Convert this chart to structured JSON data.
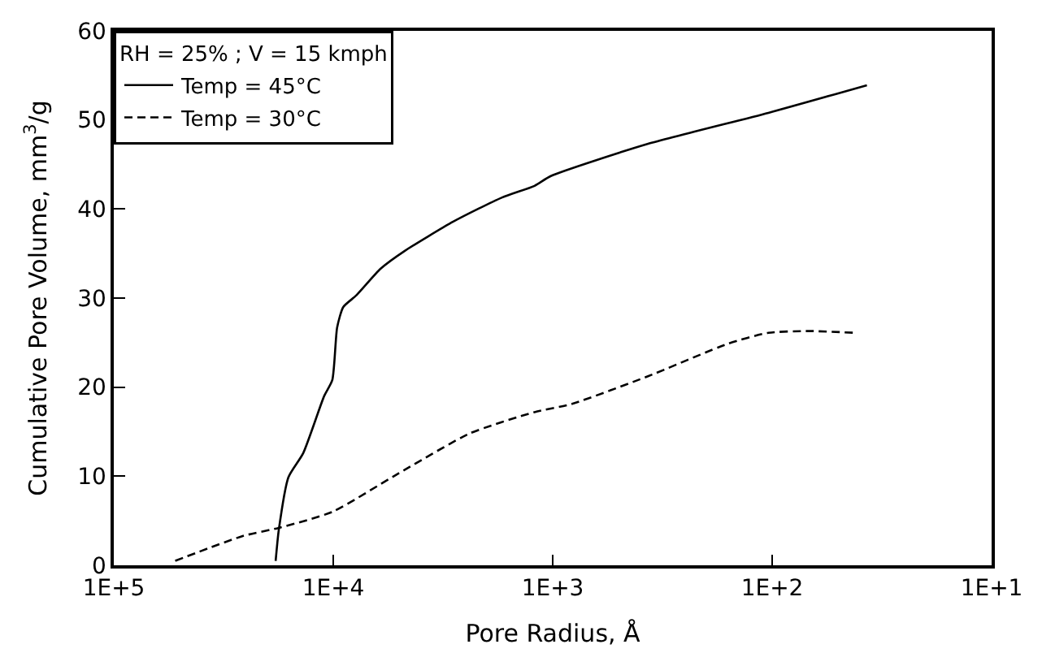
{
  "chart_data": {
    "type": "line",
    "xlabel": "Pore Radius, Å",
    "ylabel": "Cumulative Pore Volume, mm$^{3}$/g",
    "legend_title": "RH = 25% ; V = 15 kmph",
    "log": "x",
    "legend": "top left",
    "marker": "none",
    "xlim": [
      100000,
      10
    ],
    "xticks": [
      {
        "value": 100000,
        "label": "1E+5"
      },
      {
        "value": 10000,
        "label": "1E+4"
      },
      {
        "value": 1000,
        "label": "1E+3"
      },
      {
        "value": 100,
        "label": "1E+2"
      },
      {
        "value": 10,
        "label": "1E+1"
      }
    ],
    "ylim": [
      0,
      60
    ],
    "yticks": [
      0,
      10,
      20,
      30,
      40,
      50,
      60
    ],
    "series": [
      {
        "name": "Temp = 45°C",
        "color": "#000000",
        "line_style": "solid",
        "x": [
          18300,
          17700,
          16000,
          13700,
          11000,
          10100,
          9600,
          9000,
          7850,
          6080,
          4720,
          2830,
          1700,
          1210,
          1020,
          370,
          104,
          37
        ],
        "values": [
          0.5,
          4,
          9.9,
          12.6,
          19,
          20.8,
          26.7,
          29,
          30.3,
          33.3,
          35.3,
          38.6,
          41.3,
          42.6,
          43.7,
          47.3,
          50.8,
          53.9
        ]
      },
      {
        "name": "Temp = 30°C",
        "color": "#000000",
        "line_style": "dashed",
        "x": [
          52500,
          25700,
          17700,
          10100,
          5130,
          2390,
          1210,
          822,
          370,
          158,
          104,
          68,
          42
        ],
        "values": [
          0.5,
          3.3,
          4.2,
          6,
          10.2,
          14.8,
          17.2,
          18.1,
          21.2,
          24.9,
          26.1,
          26.3,
          26.1
        ]
      }
    ]
  }
}
